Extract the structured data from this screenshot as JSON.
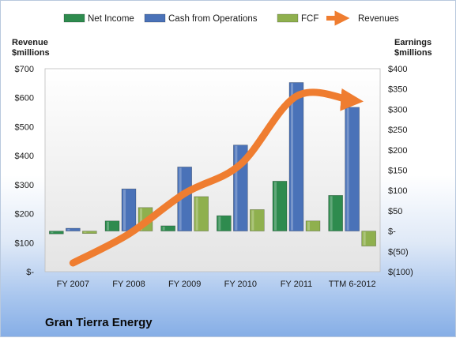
{
  "chart_data": {
    "type": "bar",
    "company": "Gran Tierra Energy",
    "categories": [
      "FY 2007",
      "FY 2008",
      "FY 2009",
      "FY 2010",
      "FY 2011",
      "TTM 6-2012"
    ],
    "series": [
      {
        "name": "Net Income",
        "axis": "right",
        "color": "#2e8b4e",
        "values": [
          -7,
          25,
          13,
          38,
          123,
          88
        ]
      },
      {
        "name": "Cash from Operations",
        "axis": "right",
        "color": "#4a72b8",
        "values": [
          7,
          104,
          158,
          212,
          366,
          305
        ]
      },
      {
        "name": "FCF",
        "axis": "right",
        "color": "#8fb04e",
        "values": [
          -6,
          58,
          85,
          53,
          25,
          -37
        ]
      },
      {
        "name": "Revenues",
        "axis": "left",
        "color": "#ef7d30",
        "values": [
          30,
          130,
          270,
          370,
          605,
          590
        ]
      }
    ],
    "left_axis": {
      "title_lines": [
        "Revenue",
        "$millions"
      ],
      "ticks": [
        "$-",
        "$100",
        "$200",
        "$300",
        "$400",
        "$500",
        "$600",
        "$700"
      ],
      "ylim": [
        0,
        700
      ]
    },
    "right_axis": {
      "title_lines": [
        "Earnings",
        "$millions"
      ],
      "ticks": [
        "$(100)",
        "$(50)",
        "$-",
        "$50",
        "$100",
        "$150",
        "$200",
        "$250",
        "$300",
        "$350",
        "$400"
      ],
      "ylim": [
        -100,
        400
      ]
    },
    "grid": false,
    "legend": "top"
  }
}
